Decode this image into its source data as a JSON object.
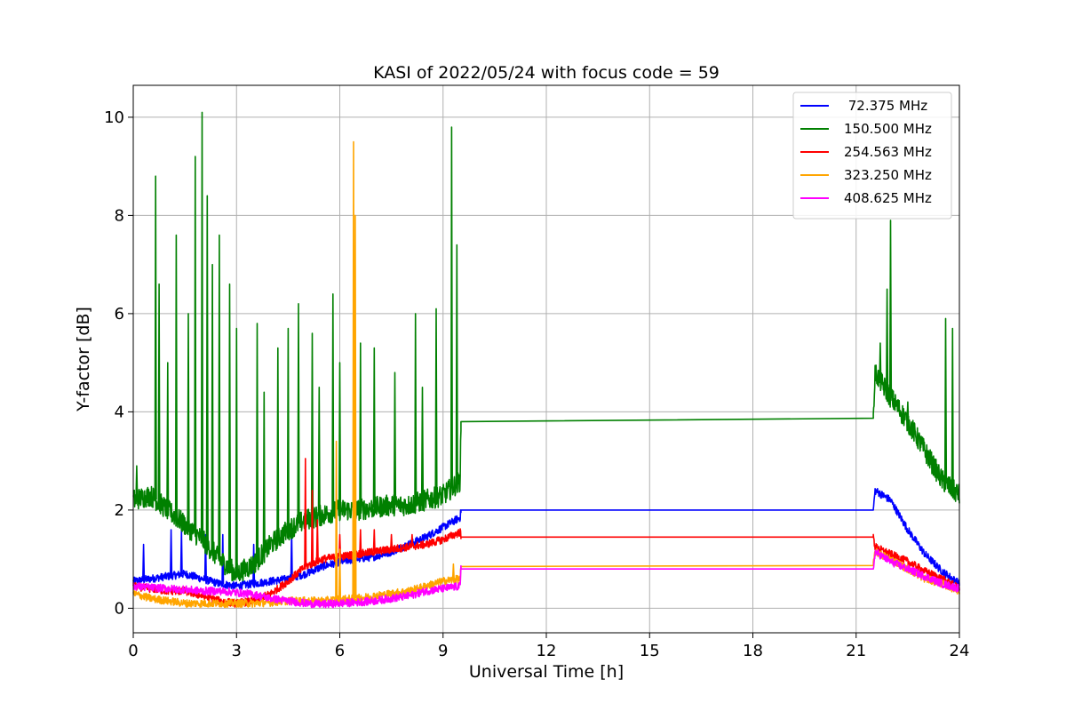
{
  "chart_data": {
    "type": "line",
    "title": "KASI of 2022/05/24 with focus code = 59",
    "xlabel": "Universal Time [h]",
    "ylabel": "Y-factor [dB]",
    "xlim": [
      0,
      24
    ],
    "ylim": [
      -0.5,
      10.65
    ],
    "xticks": [
      0,
      3,
      6,
      9,
      12,
      15,
      18,
      21,
      24
    ],
    "xtick_labels": [
      "0",
      "3",
      "6",
      "9",
      "12",
      "15",
      "18",
      "21",
      "24"
    ],
    "yticks": [
      0,
      2,
      4,
      6,
      8,
      10
    ],
    "ytick_labels": [
      "0",
      "2",
      "4",
      "6",
      "8",
      "10"
    ],
    "grid": true,
    "legend_position": "top-right",
    "series": [
      {
        "name": " 72.375 MHz",
        "color": "#0000ff",
        "points": [
          [
            0,
            0.55
          ],
          [
            0.5,
            0.6
          ],
          [
            1,
            0.65
          ],
          [
            1.5,
            0.7
          ],
          [
            2,
            0.6
          ],
          [
            2.5,
            0.5
          ],
          [
            3,
            0.45
          ],
          [
            3.5,
            0.5
          ],
          [
            4,
            0.55
          ],
          [
            4.5,
            0.6
          ],
          [
            5,
            0.7
          ],
          [
            5.5,
            0.85
          ],
          [
            6,
            0.95
          ],
          [
            6.5,
            1.0
          ],
          [
            7,
            1.05
          ],
          [
            7.5,
            1.15
          ],
          [
            8,
            1.3
          ],
          [
            8.5,
            1.45
          ],
          [
            9,
            1.65
          ],
          [
            9.5,
            1.85
          ],
          [
            9.52,
            2.0
          ],
          [
            21.5,
            2.0
          ],
          [
            21.55,
            2.4
          ],
          [
            22,
            2.2
          ],
          [
            22.5,
            1.6
          ],
          [
            23,
            1.1
          ],
          [
            23.5,
            0.75
          ],
          [
            24,
            0.5
          ]
        ],
        "spikes": [
          [
            0.3,
            1.3
          ],
          [
            1.1,
            1.6
          ],
          [
            1.4,
            1.6
          ],
          [
            2.1,
            1.5
          ],
          [
            2.6,
            1.5
          ],
          [
            3.5,
            1.3
          ],
          [
            4.6,
            1.6
          ],
          [
            6.4,
            1.2
          ]
        ]
      },
      {
        "name": "150.500 MHz",
        "color": "#008000",
        "points": [
          [
            0,
            2.2
          ],
          [
            0.5,
            2.3
          ],
          [
            1,
            2.0
          ],
          [
            1.5,
            1.7
          ],
          [
            2,
            1.4
          ],
          [
            2.5,
            1.0
          ],
          [
            3,
            0.7
          ],
          [
            3.5,
            0.9
          ],
          [
            4,
            1.3
          ],
          [
            4.5,
            1.6
          ],
          [
            5,
            1.8
          ],
          [
            5.5,
            1.9
          ],
          [
            6,
            2.0
          ],
          [
            6.5,
            2.0
          ],
          [
            7,
            2.05
          ],
          [
            7.5,
            2.1
          ],
          [
            8,
            2.1
          ],
          [
            8.5,
            2.2
          ],
          [
            9,
            2.3
          ],
          [
            9.5,
            2.6
          ],
          [
            9.52,
            3.8
          ],
          [
            21.5,
            3.87
          ],
          [
            21.55,
            4.8
          ],
          [
            22,
            4.3
          ],
          [
            22.5,
            3.8
          ],
          [
            23,
            3.2
          ],
          [
            23.5,
            2.6
          ],
          [
            24,
            2.3
          ]
        ],
        "spikes": [
          [
            0.1,
            2.9
          ],
          [
            0.65,
            8.8
          ],
          [
            0.75,
            6.6
          ],
          [
            1.0,
            5.0
          ],
          [
            1.25,
            7.6
          ],
          [
            1.6,
            6.0
          ],
          [
            1.8,
            9.2
          ],
          [
            2.0,
            10.1
          ],
          [
            2.15,
            8.4
          ],
          [
            2.3,
            7.0
          ],
          [
            2.5,
            7.6
          ],
          [
            2.8,
            6.6
          ],
          [
            3.0,
            5.7
          ],
          [
            3.6,
            5.8
          ],
          [
            3.8,
            4.4
          ],
          [
            4.2,
            5.3
          ],
          [
            4.5,
            5.7
          ],
          [
            4.8,
            6.2
          ],
          [
            5.2,
            5.6
          ],
          [
            5.4,
            4.5
          ],
          [
            5.8,
            6.4
          ],
          [
            6.0,
            5.0
          ],
          [
            6.6,
            5.4
          ],
          [
            7.0,
            5.3
          ],
          [
            7.6,
            4.8
          ],
          [
            8.2,
            6.0
          ],
          [
            8.4,
            4.5
          ],
          [
            8.8,
            6.1
          ],
          [
            9.25,
            9.8
          ],
          [
            9.4,
            7.4
          ],
          [
            21.7,
            5.4
          ],
          [
            21.9,
            6.5
          ],
          [
            22.0,
            7.9
          ],
          [
            22.5,
            4.2
          ],
          [
            23.6,
            5.9
          ],
          [
            23.8,
            5.7
          ]
        ]
      },
      {
        "name": "254.563 MHz",
        "color": "#ff0000",
        "points": [
          [
            0,
            0.45
          ],
          [
            0.5,
            0.4
          ],
          [
            1,
            0.35
          ],
          [
            1.5,
            0.35
          ],
          [
            2,
            0.25
          ],
          [
            2.5,
            0.15
          ],
          [
            3,
            0.1
          ],
          [
            3.5,
            0.15
          ],
          [
            4,
            0.3
          ],
          [
            4.5,
            0.55
          ],
          [
            5,
            0.85
          ],
          [
            5.5,
            1.0
          ],
          [
            6,
            1.05
          ],
          [
            6.5,
            1.1
          ],
          [
            7,
            1.15
          ],
          [
            7.5,
            1.2
          ],
          [
            8,
            1.25
          ],
          [
            8.5,
            1.3
          ],
          [
            9,
            1.4
          ],
          [
            9.5,
            1.55
          ],
          [
            9.52,
            1.45
          ],
          [
            21.5,
            1.45
          ],
          [
            21.55,
            1.25
          ],
          [
            22,
            1.1
          ],
          [
            22.5,
            0.95
          ],
          [
            23,
            0.75
          ],
          [
            23.5,
            0.6
          ],
          [
            24,
            0.4
          ]
        ],
        "spikes": [
          [
            5.0,
            3.05
          ],
          [
            5.2,
            2.4
          ],
          [
            5.35,
            1.8
          ],
          [
            6.0,
            1.5
          ],
          [
            6.6,
            1.6
          ],
          [
            7.0,
            1.6
          ],
          [
            7.5,
            1.5
          ],
          [
            8.1,
            1.5
          ]
        ]
      },
      {
        "name": "323.250 MHz",
        "color": "#ffa500",
        "points": [
          [
            0,
            0.3
          ],
          [
            0.5,
            0.2
          ],
          [
            1,
            0.15
          ],
          [
            1.5,
            0.1
          ],
          [
            2,
            0.1
          ],
          [
            2.5,
            0.1
          ],
          [
            3,
            0.1
          ],
          [
            3.5,
            0.1
          ],
          [
            4,
            0.12
          ],
          [
            4.5,
            0.15
          ],
          [
            5,
            0.15
          ],
          [
            5.5,
            0.15
          ],
          [
            6,
            0.18
          ],
          [
            6.5,
            0.2
          ],
          [
            7,
            0.25
          ],
          [
            7.5,
            0.3
          ],
          [
            8,
            0.35
          ],
          [
            8.5,
            0.45
          ],
          [
            9,
            0.55
          ],
          [
            9.5,
            0.6
          ],
          [
            9.52,
            0.85
          ],
          [
            21.5,
            0.87
          ],
          [
            21.55,
            1.15
          ],
          [
            22,
            1.0
          ],
          [
            22.5,
            0.8
          ],
          [
            23,
            0.6
          ],
          [
            23.5,
            0.5
          ],
          [
            24,
            0.35
          ]
        ],
        "spikes": [
          [
            5.9,
            3.4
          ],
          [
            6.0,
            1.2
          ],
          [
            6.4,
            9.5
          ],
          [
            6.45,
            8.0
          ],
          [
            9.3,
            0.9
          ]
        ]
      },
      {
        "name": "408.625 MHz",
        "color": "#ff00ff",
        "points": [
          [
            0,
            0.45
          ],
          [
            0.5,
            0.42
          ],
          [
            1,
            0.4
          ],
          [
            1.5,
            0.38
          ],
          [
            2,
            0.35
          ],
          [
            2.5,
            0.35
          ],
          [
            3,
            0.32
          ],
          [
            3.5,
            0.28
          ],
          [
            4,
            0.2
          ],
          [
            4.5,
            0.15
          ],
          [
            5,
            0.1
          ],
          [
            5.5,
            0.08
          ],
          [
            6,
            0.1
          ],
          [
            6.5,
            0.12
          ],
          [
            7,
            0.15
          ],
          [
            7.5,
            0.2
          ],
          [
            8,
            0.25
          ],
          [
            8.5,
            0.35
          ],
          [
            9,
            0.4
          ],
          [
            9.5,
            0.45
          ],
          [
            9.52,
            0.8
          ],
          [
            21.5,
            0.8
          ],
          [
            21.55,
            1.15
          ],
          [
            22,
            0.95
          ],
          [
            22.5,
            0.8
          ],
          [
            23,
            0.65
          ],
          [
            23.5,
            0.5
          ],
          [
            24,
            0.4
          ]
        ],
        "spikes": []
      }
    ]
  }
}
